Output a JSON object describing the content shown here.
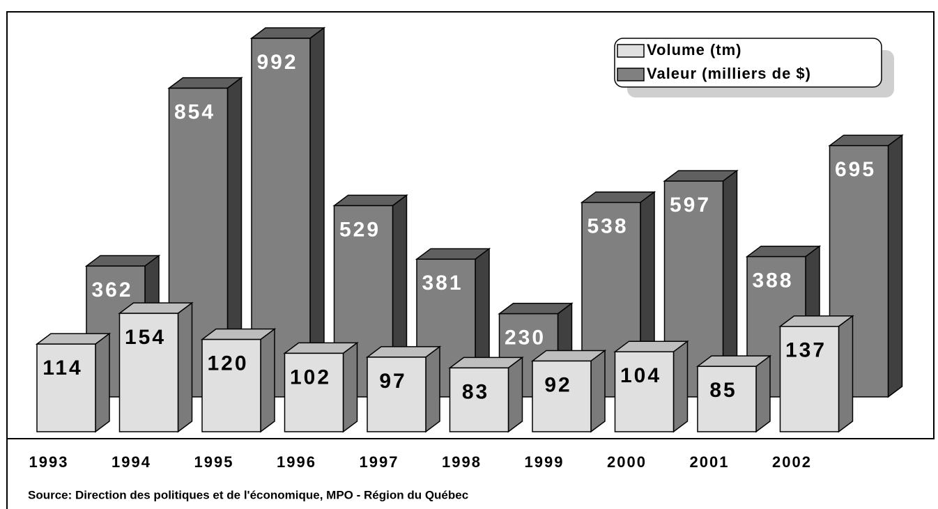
{
  "chart_data": {
    "type": "bar3d",
    "categories": [
      "1993",
      "1994",
      "1995",
      "1996",
      "1997",
      "1998",
      "1999",
      "2000",
      "2001",
      "2002"
    ],
    "series": [
      {
        "name": "Volume (tm)",
        "color": "#e0e0e0",
        "values": [
          114,
          154,
          120,
          102,
          97,
          83,
          92,
          104,
          85,
          137
        ]
      },
      {
        "name": "Valeur (milliers de $)",
        "color": "#808080",
        "values": [
          362,
          854,
          992,
          529,
          381,
          230,
          538,
          597,
          388,
          695
        ]
      }
    ],
    "source": "Source:  Direction des politiques et de l'économique, MPO - Région du Québec"
  }
}
